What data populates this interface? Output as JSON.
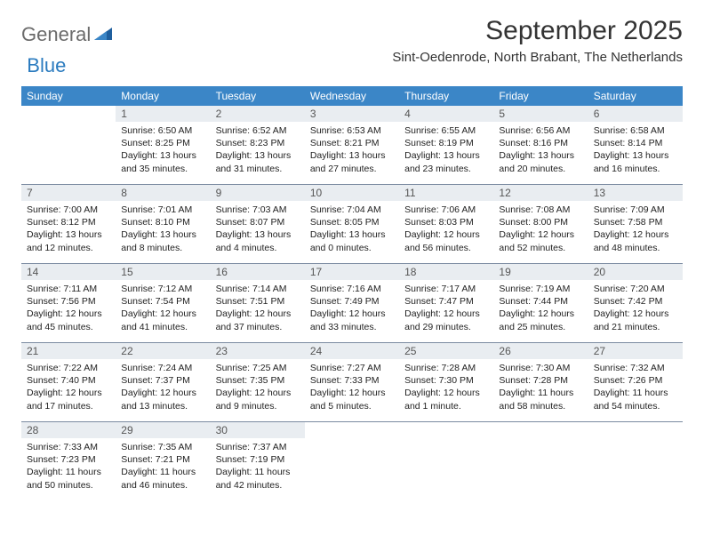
{
  "logo": {
    "text1": "General",
    "text2": "Blue",
    "accent_color": "#2b7bbf",
    "gray_color": "#6b6b6b"
  },
  "title": "September 2025",
  "subtitle": "Sint-Oedenrode, North Brabant, The Netherlands",
  "header_bg": "#3b86c7",
  "header_fg": "#ffffff",
  "daynum_bg": "#e9edf1",
  "border_color": "#7a8aa0",
  "weekdays": [
    "Sunday",
    "Monday",
    "Tuesday",
    "Wednesday",
    "Thursday",
    "Friday",
    "Saturday"
  ],
  "weeks": [
    [
      {
        "n": "",
        "sr": "",
        "ss": "",
        "dl": "",
        "empty": true
      },
      {
        "n": "1",
        "sr": "Sunrise: 6:50 AM",
        "ss": "Sunset: 8:25 PM",
        "dl": "Daylight: 13 hours and 35 minutes."
      },
      {
        "n": "2",
        "sr": "Sunrise: 6:52 AM",
        "ss": "Sunset: 8:23 PM",
        "dl": "Daylight: 13 hours and 31 minutes."
      },
      {
        "n": "3",
        "sr": "Sunrise: 6:53 AM",
        "ss": "Sunset: 8:21 PM",
        "dl": "Daylight: 13 hours and 27 minutes."
      },
      {
        "n": "4",
        "sr": "Sunrise: 6:55 AM",
        "ss": "Sunset: 8:19 PM",
        "dl": "Daylight: 13 hours and 23 minutes."
      },
      {
        "n": "5",
        "sr": "Sunrise: 6:56 AM",
        "ss": "Sunset: 8:16 PM",
        "dl": "Daylight: 13 hours and 20 minutes."
      },
      {
        "n": "6",
        "sr": "Sunrise: 6:58 AM",
        "ss": "Sunset: 8:14 PM",
        "dl": "Daylight: 13 hours and 16 minutes."
      }
    ],
    [
      {
        "n": "7",
        "sr": "Sunrise: 7:00 AM",
        "ss": "Sunset: 8:12 PM",
        "dl": "Daylight: 13 hours and 12 minutes."
      },
      {
        "n": "8",
        "sr": "Sunrise: 7:01 AM",
        "ss": "Sunset: 8:10 PM",
        "dl": "Daylight: 13 hours and 8 minutes."
      },
      {
        "n": "9",
        "sr": "Sunrise: 7:03 AM",
        "ss": "Sunset: 8:07 PM",
        "dl": "Daylight: 13 hours and 4 minutes."
      },
      {
        "n": "10",
        "sr": "Sunrise: 7:04 AM",
        "ss": "Sunset: 8:05 PM",
        "dl": "Daylight: 13 hours and 0 minutes."
      },
      {
        "n": "11",
        "sr": "Sunrise: 7:06 AM",
        "ss": "Sunset: 8:03 PM",
        "dl": "Daylight: 12 hours and 56 minutes."
      },
      {
        "n": "12",
        "sr": "Sunrise: 7:08 AM",
        "ss": "Sunset: 8:00 PM",
        "dl": "Daylight: 12 hours and 52 minutes."
      },
      {
        "n": "13",
        "sr": "Sunrise: 7:09 AM",
        "ss": "Sunset: 7:58 PM",
        "dl": "Daylight: 12 hours and 48 minutes."
      }
    ],
    [
      {
        "n": "14",
        "sr": "Sunrise: 7:11 AM",
        "ss": "Sunset: 7:56 PM",
        "dl": "Daylight: 12 hours and 45 minutes."
      },
      {
        "n": "15",
        "sr": "Sunrise: 7:12 AM",
        "ss": "Sunset: 7:54 PM",
        "dl": "Daylight: 12 hours and 41 minutes."
      },
      {
        "n": "16",
        "sr": "Sunrise: 7:14 AM",
        "ss": "Sunset: 7:51 PM",
        "dl": "Daylight: 12 hours and 37 minutes."
      },
      {
        "n": "17",
        "sr": "Sunrise: 7:16 AM",
        "ss": "Sunset: 7:49 PM",
        "dl": "Daylight: 12 hours and 33 minutes."
      },
      {
        "n": "18",
        "sr": "Sunrise: 7:17 AM",
        "ss": "Sunset: 7:47 PM",
        "dl": "Daylight: 12 hours and 29 minutes."
      },
      {
        "n": "19",
        "sr": "Sunrise: 7:19 AM",
        "ss": "Sunset: 7:44 PM",
        "dl": "Daylight: 12 hours and 25 minutes."
      },
      {
        "n": "20",
        "sr": "Sunrise: 7:20 AM",
        "ss": "Sunset: 7:42 PM",
        "dl": "Daylight: 12 hours and 21 minutes."
      }
    ],
    [
      {
        "n": "21",
        "sr": "Sunrise: 7:22 AM",
        "ss": "Sunset: 7:40 PM",
        "dl": "Daylight: 12 hours and 17 minutes."
      },
      {
        "n": "22",
        "sr": "Sunrise: 7:24 AM",
        "ss": "Sunset: 7:37 PM",
        "dl": "Daylight: 12 hours and 13 minutes."
      },
      {
        "n": "23",
        "sr": "Sunrise: 7:25 AM",
        "ss": "Sunset: 7:35 PM",
        "dl": "Daylight: 12 hours and 9 minutes."
      },
      {
        "n": "24",
        "sr": "Sunrise: 7:27 AM",
        "ss": "Sunset: 7:33 PM",
        "dl": "Daylight: 12 hours and 5 minutes."
      },
      {
        "n": "25",
        "sr": "Sunrise: 7:28 AM",
        "ss": "Sunset: 7:30 PM",
        "dl": "Daylight: 12 hours and 1 minute."
      },
      {
        "n": "26",
        "sr": "Sunrise: 7:30 AM",
        "ss": "Sunset: 7:28 PM",
        "dl": "Daylight: 11 hours and 58 minutes."
      },
      {
        "n": "27",
        "sr": "Sunrise: 7:32 AM",
        "ss": "Sunset: 7:26 PM",
        "dl": "Daylight: 11 hours and 54 minutes."
      }
    ],
    [
      {
        "n": "28",
        "sr": "Sunrise: 7:33 AM",
        "ss": "Sunset: 7:23 PM",
        "dl": "Daylight: 11 hours and 50 minutes."
      },
      {
        "n": "29",
        "sr": "Sunrise: 7:35 AM",
        "ss": "Sunset: 7:21 PM",
        "dl": "Daylight: 11 hours and 46 minutes."
      },
      {
        "n": "30",
        "sr": "Sunrise: 7:37 AM",
        "ss": "Sunset: 7:19 PM",
        "dl": "Daylight: 11 hours and 42 minutes."
      },
      {
        "n": "",
        "sr": "",
        "ss": "",
        "dl": "",
        "empty": true
      },
      {
        "n": "",
        "sr": "",
        "ss": "",
        "dl": "",
        "empty": true
      },
      {
        "n": "",
        "sr": "",
        "ss": "",
        "dl": "",
        "empty": true
      },
      {
        "n": "",
        "sr": "",
        "ss": "",
        "dl": "",
        "empty": true
      }
    ]
  ]
}
